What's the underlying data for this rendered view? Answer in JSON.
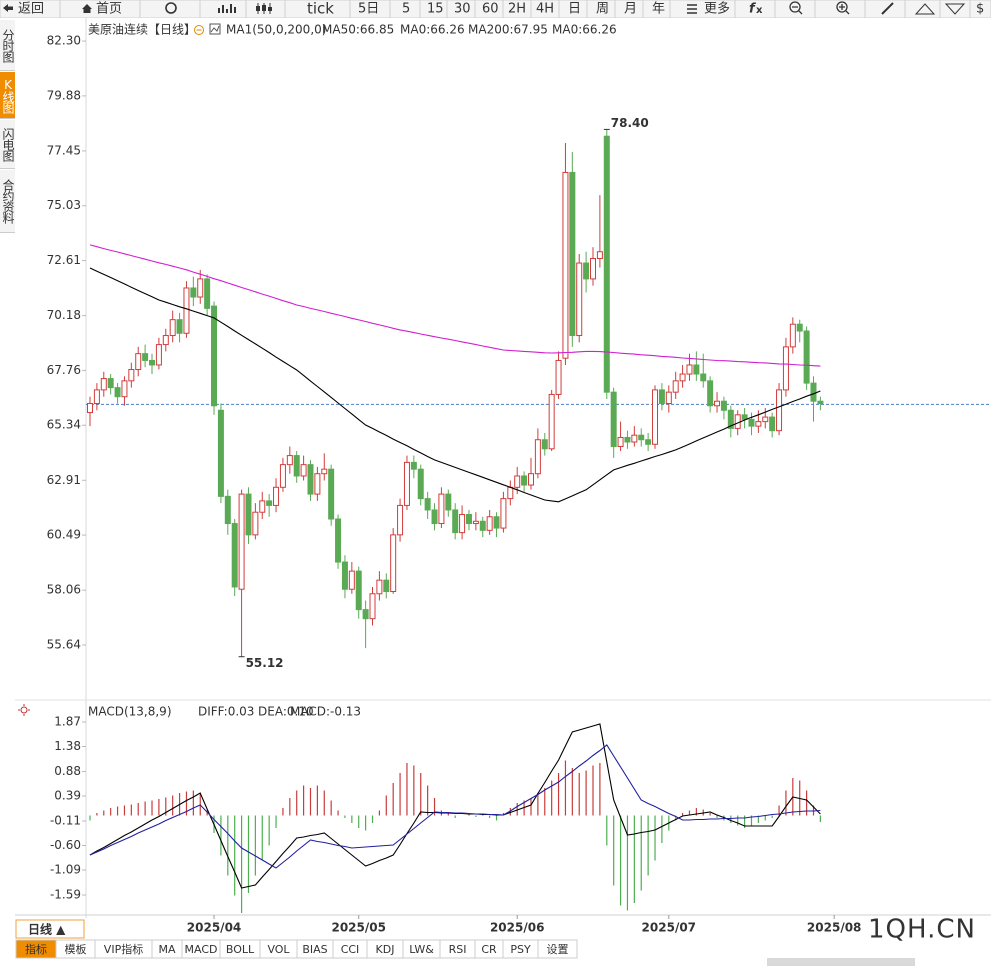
{
  "toolbar": [
    "返回",
    "首页",
    "tick",
    "5日",
    "5",
    "15",
    "30",
    "60",
    "2H",
    "4H",
    "日",
    "周",
    "月",
    "年",
    "更多",
    "$"
  ],
  "side_tabs": [
    "分时图",
    "K线图",
    "闪电图",
    "合约资料"
  ],
  "chart_data": [
    {
      "type": "candlestick",
      "title": "美原油连续",
      "subtitle": "【日线】",
      "indicator": "MA1(50,0,200,0)",
      "open": [
        65.9,
        66.3,
        66.9,
        67.4,
        67.0,
        66.6,
        67.3,
        67.8,
        68.5,
        68.2,
        68.0,
        68.9,
        69.3,
        70.0,
        69.4,
        71.4,
        71.0,
        71.8,
        70.6,
        66.0,
        62.2,
        61.0,
        58.1,
        62.3,
        60.5,
        61.5,
        62.0,
        61.8,
        62.6,
        63.6,
        64.0,
        63.1,
        63.6,
        62.3,
        63.2,
        63.4,
        61.2,
        59.3,
        58.1,
        58.9,
        57.2,
        56.8,
        57.9,
        58.5,
        58.0,
        60.5,
        61.8,
        63.7,
        63.4,
        62.1,
        61.6,
        61.0,
        62.3,
        61.6,
        60.6,
        61.4,
        61.0,
        61.1,
        60.7,
        61.3,
        60.8,
        62.1,
        62.6,
        63.1,
        62.7,
        63.2,
        64.7,
        64.3,
        66.7,
        68.3,
        76.5,
        69.3,
        72.5,
        71.8,
        72.7,
        78.1,
        66.8,
        64.4,
        64.8,
        64.6,
        64.9,
        64.7,
        64.5,
        66.9,
        66.3,
        66.8,
        67.3,
        67.6,
        68.0,
        67.6,
        67.3,
        66.2,
        66.4,
        66.0,
        65.2,
        65.8,
        65.6,
        65.3,
        65.5,
        65.7,
        65.1,
        66.9,
        68.8,
        69.8,
        69.5,
        67.2,
        66.4
      ],
      "high": [
        66.6,
        67.2,
        67.7,
        67.6,
        67.2,
        67.5,
        68.1,
        68.8,
        68.9,
        68.5,
        69.2,
        69.6,
        70.4,
        70.3,
        71.7,
        71.9,
        72.2,
        72.0,
        70.8,
        66.3,
        62.5,
        61.2,
        62.5,
        62.6,
        61.9,
        62.4,
        62.3,
        63.0,
        63.9,
        64.4,
        64.2,
        64.0,
        63.8,
        63.5,
        64.1,
        63.6,
        61.4,
        59.6,
        59.3,
        59.1,
        57.6,
        58.2,
        58.9,
        58.8,
        60.8,
        62.1,
        64.0,
        64.0,
        63.6,
        62.4,
        61.9,
        62.6,
        62.5,
        61.9,
        61.8,
        61.6,
        61.5,
        61.3,
        61.6,
        61.5,
        62.4,
        62.9,
        63.5,
        63.3,
        63.9,
        65.2,
        65.0,
        66.9,
        68.6,
        77.8,
        77.4,
        72.9,
        73.0,
        73.2,
        75.5,
        78.4,
        67.0,
        65.5,
        65.1,
        65.3,
        65.2,
        65.0,
        67.1,
        67.2,
        67.1,
        67.7,
        68.0,
        68.5,
        68.6,
        68.5,
        67.5,
        66.8,
        66.6,
        66.2,
        66.0,
        66.1,
        65.9,
        66.0,
        66.1,
        65.9,
        67.2,
        69.2,
        70.1,
        70.0,
        69.7,
        67.5,
        66.6
      ],
      "low": [
        65.3,
        66.0,
        66.6,
        66.7,
        66.3,
        66.2,
        67.0,
        67.5,
        67.9,
        67.6,
        67.8,
        68.6,
        69.0,
        69.0,
        69.2,
        70.6,
        70.7,
        70.2,
        65.8,
        61.9,
        60.5,
        57.8,
        55.12,
        60.1,
        60.3,
        61.2,
        61.3,
        61.5,
        62.4,
        63.2,
        62.8,
        62.9,
        62.0,
        62.0,
        62.9,
        60.9,
        59.0,
        57.7,
        57.9,
        56.8,
        55.5,
        56.5,
        57.6,
        57.7,
        57.9,
        60.2,
        61.6,
        63.0,
        61.8,
        61.2,
        60.7,
        60.8,
        61.3,
        60.3,
        60.3,
        60.7,
        60.7,
        60.4,
        60.5,
        60.4,
        60.6,
        61.8,
        62.3,
        62.4,
        62.5,
        63.0,
        64.0,
        64.2,
        66.5,
        68.0,
        68.8,
        69.0,
        71.2,
        71.5,
        72.3,
        66.5,
        63.9,
        64.2,
        64.3,
        64.4,
        64.4,
        64.2,
        64.3,
        66.0,
        65.9,
        66.5,
        67.0,
        67.3,
        67.3,
        67.0,
        65.9,
        65.9,
        65.6,
        64.8,
        64.9,
        65.2,
        64.9,
        65.0,
        65.2,
        64.8,
        64.9,
        66.6,
        68.5,
        69.0,
        66.9,
        65.5,
        66.0
      ],
      "close": [
        66.3,
        66.9,
        67.4,
        67.0,
        66.6,
        67.3,
        67.8,
        68.5,
        68.2,
        68.0,
        68.9,
        69.3,
        70.0,
        69.4,
        71.4,
        71.0,
        71.8,
        70.5,
        66.2,
        62.2,
        61.0,
        58.2,
        62.3,
        60.5,
        61.5,
        62.0,
        61.8,
        62.6,
        63.6,
        64.0,
        63.1,
        63.6,
        62.3,
        63.2,
        63.4,
        61.2,
        59.3,
        58.1,
        58.9,
        57.2,
        56.8,
        57.9,
        58.5,
        58.0,
        60.5,
        61.8,
        63.7,
        63.4,
        62.1,
        61.6,
        61.0,
        62.3,
        61.6,
        60.6,
        61.4,
        61.0,
        61.1,
        60.7,
        61.3,
        60.8,
        62.1,
        62.6,
        63.1,
        62.7,
        63.2,
        64.7,
        64.3,
        66.7,
        68.2,
        76.5,
        69.3,
        72.5,
        71.8,
        72.7,
        73.0,
        66.8,
        64.4,
        64.8,
        64.6,
        64.9,
        64.7,
        64.5,
        66.9,
        66.3,
        66.8,
        67.3,
        67.6,
        68.0,
        67.6,
        67.3,
        66.2,
        66.4,
        66.0,
        65.2,
        65.8,
        65.6,
        65.3,
        65.5,
        65.7,
        65.1,
        66.9,
        68.8,
        69.8,
        69.5,
        67.2,
        66.4,
        66.3
      ],
      "up_color": "#d23c3c",
      "down_color": "#5aaa55",
      "series": [
        {
          "name": "MA50:66.85",
          "color": "#000000",
          "values": [
            72.28,
            72.14,
            72.0,
            71.86,
            71.72,
            71.58,
            71.43,
            71.29,
            71.15,
            71.01,
            70.87,
            70.77,
            70.67,
            70.57,
            70.48,
            70.38,
            70.28,
            70.18,
            70.08,
            69.89,
            69.7,
            69.5,
            69.31,
            69.12,
            68.93,
            68.74,
            68.55,
            68.35,
            68.16,
            67.97,
            67.78,
            67.54,
            67.29,
            67.05,
            66.81,
            66.57,
            66.32,
            66.08,
            65.84,
            65.59,
            65.35,
            65.2,
            65.04,
            64.89,
            64.73,
            64.58,
            64.43,
            64.27,
            64.12,
            63.96,
            63.81,
            63.7,
            63.59,
            63.48,
            63.37,
            63.26,
            63.15,
            63.04,
            62.93,
            62.82,
            62.71,
            62.6,
            62.49,
            62.37,
            62.26,
            62.15,
            62.04,
            62.0,
            61.96,
            62.09,
            62.22,
            62.36,
            62.49,
            62.71,
            62.93,
            63.15,
            63.37,
            63.47,
            63.57,
            63.66,
            63.76,
            63.86,
            63.96,
            64.05,
            64.15,
            64.25,
            64.38,
            64.51,
            64.65,
            64.78,
            64.91,
            65.04,
            65.17,
            65.31,
            65.44,
            65.57,
            65.69,
            65.8,
            65.92,
            66.04,
            66.15,
            66.27,
            66.39,
            66.5,
            66.62,
            66.73,
            66.85
          ]
        },
        {
          "name": "MA200:67.95",
          "color": "#d020d0",
          "values": [
            73.3,
            73.22,
            73.14,
            73.06,
            72.99,
            72.91,
            72.83,
            72.75,
            72.67,
            72.59,
            72.51,
            72.44,
            72.36,
            72.28,
            72.2,
            72.1,
            72.01,
            71.91,
            71.81,
            71.72,
            71.62,
            71.52,
            71.42,
            71.33,
            71.23,
            71.13,
            71.04,
            70.94,
            70.84,
            70.75,
            70.65,
            70.58,
            70.5,
            70.43,
            70.36,
            70.28,
            70.21,
            70.14,
            70.06,
            69.99,
            69.92,
            69.84,
            69.77,
            69.7,
            69.62,
            69.55,
            69.49,
            69.43,
            69.37,
            69.31,
            69.25,
            69.19,
            69.14,
            69.08,
            69.02,
            68.96,
            68.9,
            68.84,
            68.78,
            68.72,
            68.66,
            68.64,
            68.62,
            68.6,
            68.58,
            68.56,
            68.54,
            68.53,
            68.54,
            68.55,
            68.56,
            68.58,
            68.6,
            68.6,
            68.59,
            68.57,
            68.55,
            68.52,
            68.5,
            68.48,
            68.45,
            68.43,
            68.41,
            68.38,
            68.36,
            68.34,
            68.31,
            68.29,
            68.27,
            68.24,
            68.22,
            68.2,
            68.19,
            68.17,
            68.15,
            68.14,
            68.12,
            68.1,
            68.09,
            68.07,
            68.05,
            68.04,
            68.02,
            68.0,
            67.99,
            67.97,
            67.95
          ]
        }
      ],
      "extra_legend": [
        {
          "name": "MA0:66.26",
          "color": "#1a1aa0"
        },
        {
          "name": "MA0:66.26",
          "color": "#ff8a00"
        }
      ],
      "price_line": 66.26,
      "price_line_color": "#4a7fc1",
      "max_label": "78.40",
      "max_label_color": "#d23c3c",
      "min_label": "55.12",
      "min_label_color": "#4a9a4a",
      "xlim": [
        -0.58,
        130.76
      ],
      "ylim": [
        53.21,
        83.23
      ],
      "yticks": [
        {
          "value": 82.3,
          "label": "82.30"
        },
        79.88,
        77.45,
        75.03,
        72.61,
        70.18,
        67.76,
        65.34,
        62.91,
        60.49,
        58.06,
        55.64
      ]
    },
    {
      "type": "macd",
      "title": "MACD(13,8,9)",
      "series": [
        {
          "name": "DIFF:0.03",
          "color": "#000000",
          "values": [
            -0.79,
            -0.71,
            -0.64,
            -0.56,
            -0.48,
            -0.4,
            -0.33,
            -0.25,
            -0.17,
            -0.09,
            -0.02,
            0.06,
            0.14,
            0.22,
            0.3,
            0.37,
            0.45,
            0.13,
            -0.18,
            -0.5,
            -0.82,
            -1.13,
            -1.45,
            -1.42,
            -1.39,
            -1.23,
            -1.08,
            -0.92,
            -0.76,
            -0.61,
            -0.45,
            -0.43,
            -0.4,
            -0.38,
            -0.35,
            -0.46,
            -0.57,
            -0.68,
            -0.79,
            -0.9,
            -1.01,
            -0.96,
            -0.9,
            -0.85,
            -0.79,
            -0.58,
            -0.36,
            -0.15,
            0.07,
            0.06,
            0.06,
            0.05,
            0.05,
            0.04,
            0.04,
            0.03,
            0.03,
            0.02,
            0.02,
            0.01,
            0.01,
            0.06,
            0.11,
            0.16,
            0.21,
            0.44,
            0.66,
            0.89,
            1.11,
            1.39,
            1.67,
            1.71,
            1.75,
            1.79,
            1.83,
            1.07,
            0.31,
            -0.04,
            -0.39,
            -0.37,
            -0.34,
            -0.32,
            -0.29,
            -0.22,
            -0.15,
            -0.08,
            -0.01,
            0.01,
            0.03,
            0.05,
            0.07,
            0.01,
            -0.04,
            -0.1,
            -0.15,
            -0.21,
            -0.21,
            -0.21,
            -0.21,
            -0.21,
            -0.02,
            0.18,
            0.37,
            0.34,
            0.31,
            0.17,
            0.03
          ]
        },
        {
          "name": "DEA:0.10",
          "color": "#2020a0",
          "values": [
            -0.79,
            -0.73,
            -0.67,
            -0.6,
            -0.54,
            -0.48,
            -0.42,
            -0.35,
            -0.29,
            -0.23,
            -0.17,
            -0.1,
            -0.04,
            0.02,
            0.08,
            0.15,
            0.21,
            0.07,
            -0.08,
            -0.22,
            -0.36,
            -0.51,
            -0.65,
            -0.73,
            -0.81,
            -0.89,
            -0.97,
            -1.05,
            -0.94,
            -0.83,
            -0.71,
            -0.6,
            -0.49,
            -0.52,
            -0.54,
            -0.57,
            -0.6,
            -0.62,
            -0.65,
            -0.64,
            -0.63,
            -0.62,
            -0.61,
            -0.6,
            -0.59,
            -0.48,
            -0.37,
            -0.26,
            -0.15,
            -0.04,
            0.07,
            0.06,
            0.06,
            0.05,
            0.05,
            0.04,
            0.03,
            0.03,
            0.02,
            0.02,
            0.01,
            0.09,
            0.18,
            0.26,
            0.34,
            0.42,
            0.51,
            0.59,
            0.67,
            0.78,
            0.88,
            0.99,
            1.09,
            1.2,
            1.3,
            1.41,
            1.19,
            0.97,
            0.75,
            0.53,
            0.31,
            0.24,
            0.18,
            0.11,
            0.04,
            -0.02,
            -0.09,
            -0.09,
            -0.08,
            -0.08,
            -0.07,
            -0.07,
            -0.06,
            -0.06,
            -0.05,
            -0.05,
            -0.03,
            -0.02,
            0.0,
            0.02,
            0.03,
            0.05,
            0.07,
            0.08,
            0.09,
            0.09,
            0.1
          ]
        }
      ],
      "histogram": {
        "name": "MACD:-0.13",
        "color": "#e040e0",
        "up_color": "#c83c3c",
        "down_color": "#4caf50",
        "values": [
          -0.1,
          0.05,
          0.1,
          0.15,
          0.18,
          0.2,
          0.22,
          0.25,
          0.28,
          0.3,
          0.33,
          0.36,
          0.4,
          0.45,
          0.48,
          0.5,
          0.45,
          0.1,
          -0.35,
          -0.8,
          -1.2,
          -1.6,
          -1.95,
          -1.55,
          -1.2,
          -0.9,
          -0.6,
          -0.25,
          0.15,
          0.35,
          0.5,
          0.6,
          0.55,
          0.6,
          0.5,
          0.3,
          0.1,
          -0.05,
          -0.15,
          -0.25,
          -0.3,
          -0.15,
          0.1,
          0.4,
          0.65,
          0.85,
          1.05,
          1.0,
          0.85,
          0.6,
          0.35,
          0.1,
          0.05,
          -0.05,
          0.0,
          0.02,
          -0.03,
          0.02,
          -0.05,
          -0.1,
          0.05,
          0.15,
          0.25,
          0.3,
          0.35,
          0.45,
          0.55,
          0.7,
          0.85,
          1.1,
          0.95,
          0.85,
          0.9,
          1.0,
          1.05,
          -0.6,
          -1.4,
          -1.8,
          -1.9,
          -1.75,
          -1.5,
          -1.2,
          -0.9,
          -0.55,
          -0.3,
          -0.1,
          0.05,
          0.1,
          0.15,
          0.12,
          0.05,
          -0.05,
          -0.1,
          -0.15,
          -0.2,
          -0.25,
          -0.2,
          -0.15,
          -0.1,
          -0.05,
          0.2,
          0.5,
          0.75,
          0.7,
          0.5,
          0.2,
          -0.13
        ]
      },
      "xlim": [
        -0.58,
        130.76
      ],
      "ylim": [
        -1.99,
        2.27
      ],
      "yticks": [
        1.87,
        1.38,
        0.88,
        0.39,
        -0.11,
        {
          "value": -0.6,
          "label": "-0.60"
        },
        -1.09,
        -1.59
      ],
      "xticks": [
        {
          "value": 18,
          "label": "2025/04"
        },
        {
          "value": 39,
          "label": "2025/05"
        },
        {
          "value": 62,
          "label": "2025/06"
        },
        {
          "value": 84,
          "label": "2025/07"
        },
        {
          "value": 108,
          "label": "2025/08"
        }
      ]
    }
  ],
  "bottom": {
    "period": "日线 ▲",
    "tabs": [
      "指标",
      "模板",
      "VIP指标",
      "MA",
      "MACD",
      "BOLL",
      "VOL",
      "BIAS",
      "CCI",
      "KDJ",
      "LW&",
      "RSI",
      "CR",
      "PSY",
      "设置"
    ]
  },
  "watermark": "1QH.CN"
}
